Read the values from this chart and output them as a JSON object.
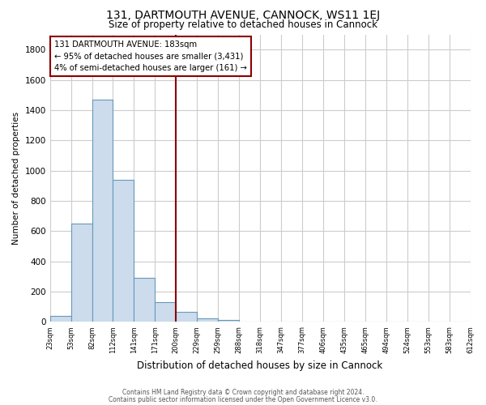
{
  "title": "131, DARTMOUTH AVENUE, CANNOCK, WS11 1EJ",
  "subtitle": "Size of property relative to detached houses in Cannock",
  "xlabel": "Distribution of detached houses by size in Cannock",
  "ylabel": "Number of detached properties",
  "bar_values": [
    40,
    650,
    1470,
    940,
    290,
    130,
    65,
    25,
    15,
    0,
    0,
    0,
    0,
    0,
    0,
    0,
    0,
    0,
    0,
    0
  ],
  "bin_labels": [
    "23sqm",
    "53sqm",
    "82sqm",
    "112sqm",
    "141sqm",
    "171sqm",
    "200sqm",
    "229sqm",
    "259sqm",
    "288sqm",
    "318sqm",
    "347sqm",
    "377sqm",
    "406sqm",
    "435sqm",
    "465sqm",
    "494sqm",
    "524sqm",
    "553sqm",
    "583sqm",
    "612sqm"
  ],
  "bar_color": "#ccdcec",
  "bar_edge_color": "#6699bb",
  "red_line_x": 6.0,
  "annotation_title": "131 DARTMOUTH AVENUE: 183sqm",
  "annotation_line1": "← 95% of detached houses are smaller (3,431)",
  "annotation_line2": "4% of semi-detached houses are larger (161) →",
  "ylim": [
    0,
    1900
  ],
  "yticks": [
    0,
    200,
    400,
    600,
    800,
    1000,
    1200,
    1400,
    1600,
    1800
  ],
  "footer1": "Contains HM Land Registry data © Crown copyright and database right 2024.",
  "footer2": "Contains public sector information licensed under the Open Government Licence v3.0.",
  "background_color": "#ffffff",
  "plot_background": "#ffffff",
  "grid_color": "#cccccc"
}
